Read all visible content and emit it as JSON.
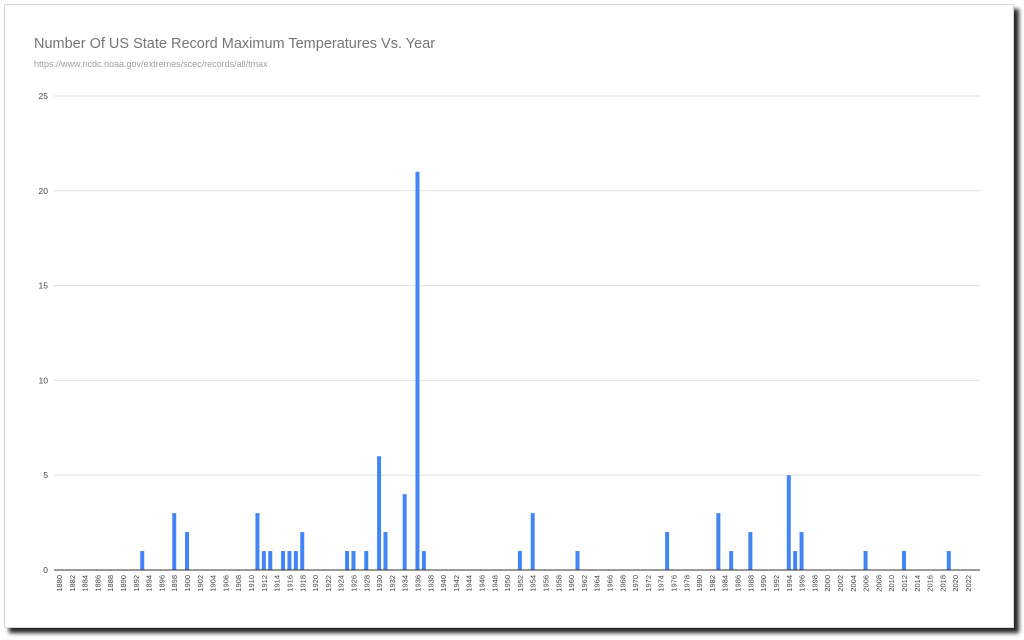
{
  "chart_data": {
    "type": "bar",
    "title": "Number Of US State Record Maximum Temperatures Vs. Year",
    "subtitle": "https://www.ncdc.noaa.gov/extremes/scec/records/all/tmax",
    "xlabel": "",
    "ylabel": "",
    "ylim": [
      0,
      25
    ],
    "yticks": [
      0,
      5,
      10,
      15,
      20,
      25
    ],
    "x_range": [
      1880,
      2022
    ],
    "x_tick_step": 2,
    "grid": true,
    "legend": "none",
    "color": "#4285f4",
    "points": [
      {
        "year": 1893,
        "value": 1
      },
      {
        "year": 1898,
        "value": 3
      },
      {
        "year": 1900,
        "value": 2
      },
      {
        "year": 1911,
        "value": 3
      },
      {
        "year": 1912,
        "value": 1
      },
      {
        "year": 1913,
        "value": 1
      },
      {
        "year": 1915,
        "value": 1
      },
      {
        "year": 1916,
        "value": 1
      },
      {
        "year": 1917,
        "value": 1
      },
      {
        "year": 1918,
        "value": 2
      },
      {
        "year": 1925,
        "value": 1
      },
      {
        "year": 1926,
        "value": 1
      },
      {
        "year": 1928,
        "value": 1
      },
      {
        "year": 1930,
        "value": 6
      },
      {
        "year": 1931,
        "value": 2
      },
      {
        "year": 1934,
        "value": 4
      },
      {
        "year": 1936,
        "value": 21
      },
      {
        "year": 1937,
        "value": 1
      },
      {
        "year": 1952,
        "value": 1
      },
      {
        "year": 1954,
        "value": 3
      },
      {
        "year": 1961,
        "value": 1
      },
      {
        "year": 1975,
        "value": 2
      },
      {
        "year": 1983,
        "value": 3
      },
      {
        "year": 1985,
        "value": 1
      },
      {
        "year": 1988,
        "value": 2
      },
      {
        "year": 1994,
        "value": 5
      },
      {
        "year": 1995,
        "value": 1
      },
      {
        "year": 1996,
        "value": 2
      },
      {
        "year": 2006,
        "value": 1
      },
      {
        "year": 2012,
        "value": 1
      },
      {
        "year": 2019,
        "value": 1
      }
    ]
  }
}
